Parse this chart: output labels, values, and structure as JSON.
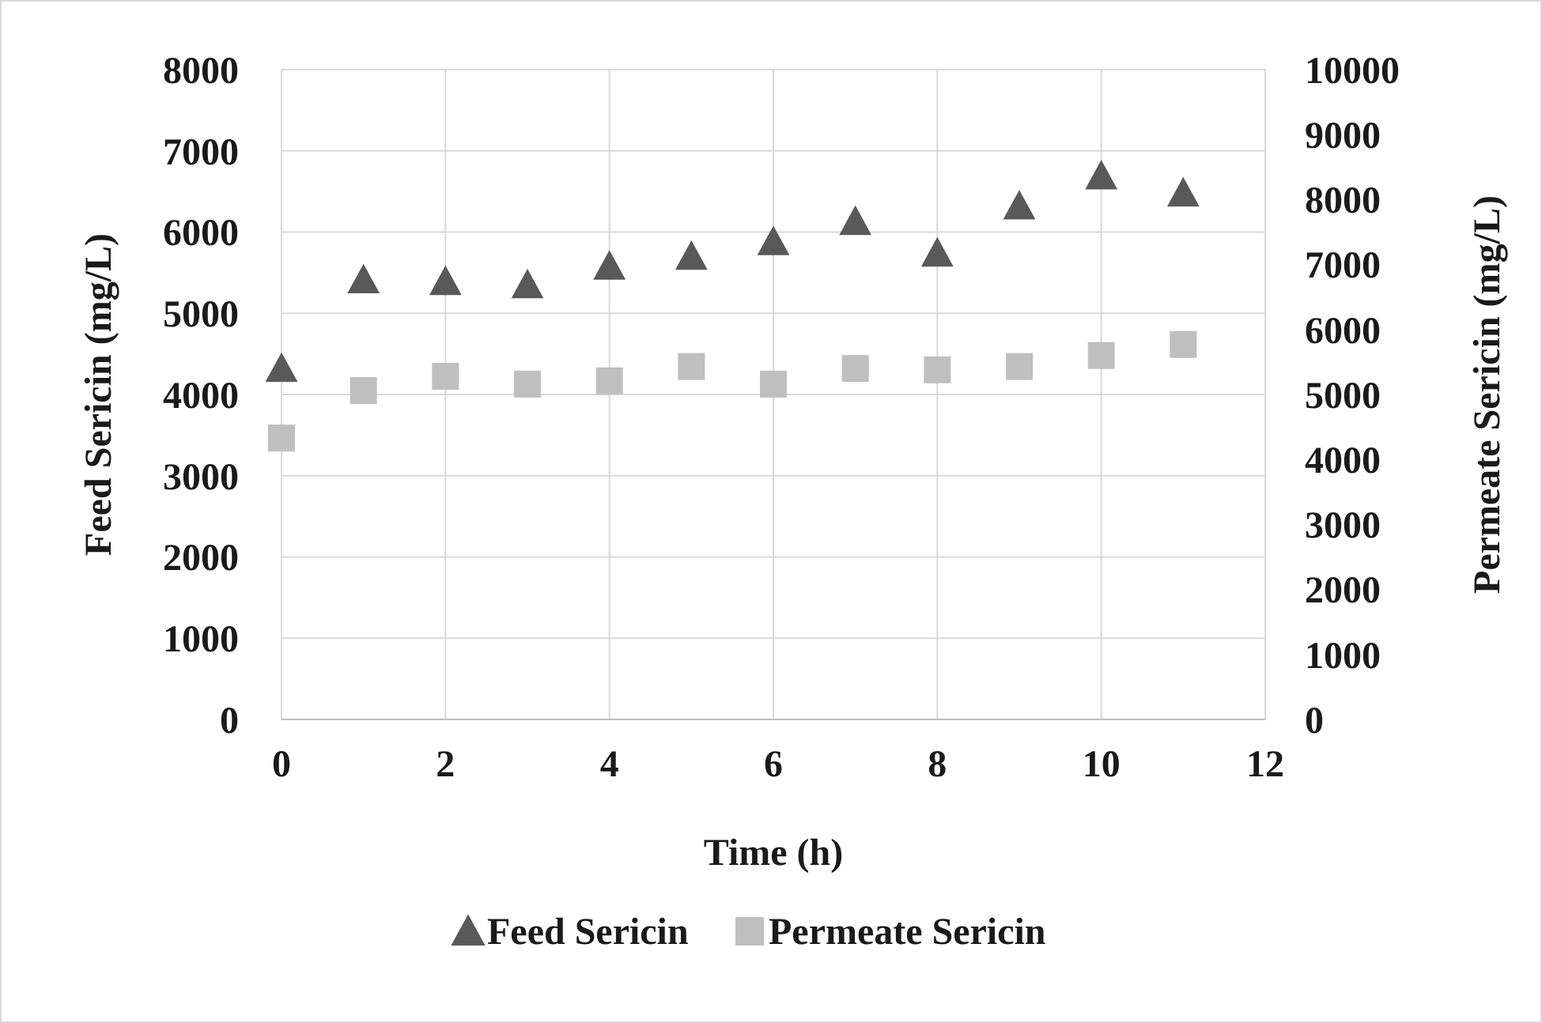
{
  "chart_data": {
    "type": "scatter",
    "xlabel": "Time (h)",
    "ylabel": "Feed Sericin (mg/L)",
    "y2label": "Permeate Sericin (mg/L)",
    "x": [
      0,
      1,
      2,
      3,
      4,
      5,
      6,
      7,
      8,
      9,
      10,
      11
    ],
    "xlim": [
      0,
      12
    ],
    "xticks": [
      0,
      2,
      4,
      6,
      8,
      10,
      12
    ],
    "ylim": [
      0,
      8000
    ],
    "yticks": [
      0,
      1000,
      2000,
      3000,
      4000,
      5000,
      6000,
      7000,
      8000
    ],
    "y2lim": [
      0,
      10000
    ],
    "y2ticks": [
      0,
      1000,
      2000,
      3000,
      4000,
      5000,
      6000,
      7000,
      8000,
      9000,
      10000
    ],
    "grid": true,
    "legend": "bottom",
    "series": [
      {
        "name": "Feed Sericin",
        "color": "#595959",
        "marker": "triangle",
        "values": [
          4320,
          5410,
          5390,
          5350,
          5580,
          5700,
          5880,
          6130,
          5740,
          6320,
          6690,
          6480
        ]
      },
      {
        "name": "Permeate Sericin",
        "color": "#bfbfbf",
        "marker": "square",
        "axis": "y2",
        "values": [
          4330,
          5060,
          5280,
          5160,
          5210,
          5430,
          5160,
          5400,
          5380,
          5430,
          5600,
          5770
        ]
      }
    ]
  }
}
